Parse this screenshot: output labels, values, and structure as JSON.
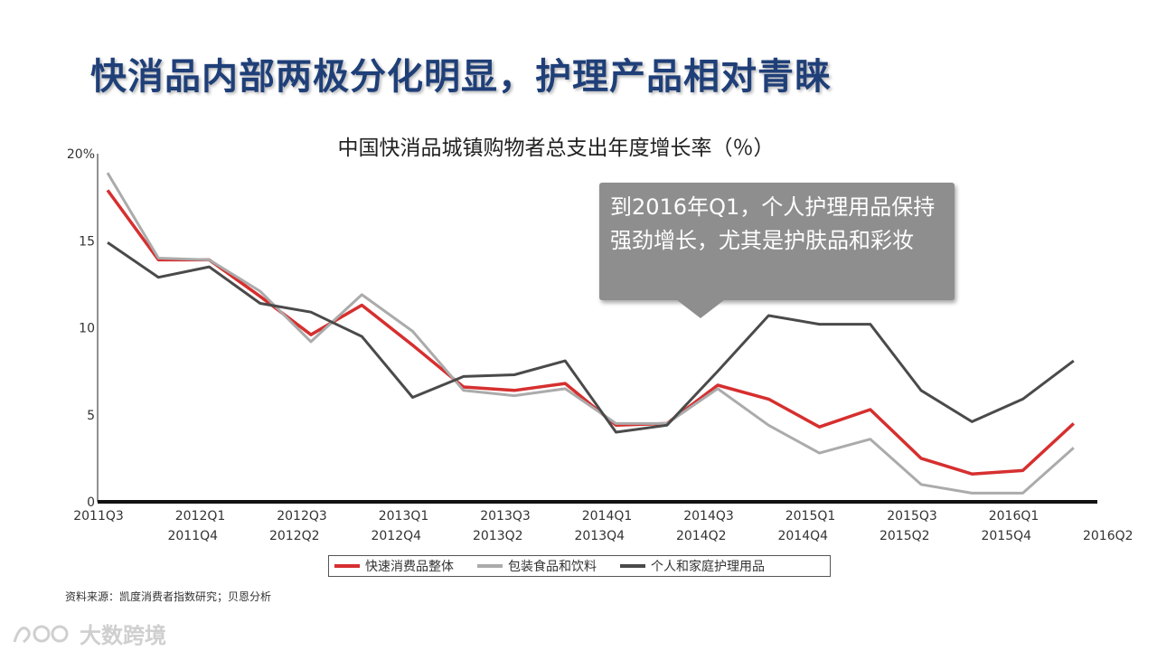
{
  "slide": {
    "title": "快消品内部两极分化明显，护理产品相对青睐",
    "source": "资料来源：凯度消费者指数研究；贝恩分析",
    "watermark": "大数跨境"
  },
  "callout": {
    "text": "到2016年Q1，个人护理用品保持强劲增长，尤其是护肤品和彩妆"
  },
  "chart_data": {
    "type": "line",
    "title": "中国快消品城镇购物者总支出年度增长率（％）",
    "categories": [
      "2011Q3",
      "2011Q4",
      "2012Q1",
      "2012Q2",
      "2012Q3",
      "2012Q4",
      "2013Q1",
      "2013Q2",
      "2013Q3",
      "2013Q4",
      "2014Q1",
      "2014Q2",
      "2014Q3",
      "2014Q4",
      "2015Q1",
      "2015Q2",
      "2015Q3",
      "2015Q4",
      "2016Q1",
      "2016Q2"
    ],
    "ytick_labels": [
      "0",
      "5",
      "10",
      "15",
      "20%"
    ],
    "yticks": [
      0,
      5,
      10,
      15,
      20
    ],
    "ylim": [
      0,
      20
    ],
    "grid": false,
    "legend_position": "bottom",
    "series": [
      {
        "name": "快速消费品整体",
        "color": "#d62f2f",
        "values": [
          17.9,
          13.9,
          13.9,
          11.8,
          9.6,
          11.3,
          9.0,
          6.6,
          6.4,
          6.8,
          4.4,
          4.5,
          6.7,
          5.9,
          4.3,
          5.3,
          2.5,
          1.6,
          1.8,
          4.5
        ]
      },
      {
        "name": "包装食品和饮料",
        "color": "#ababab",
        "values": [
          18.9,
          14.0,
          13.9,
          12.1,
          9.2,
          11.9,
          9.8,
          6.4,
          6.1,
          6.5,
          4.5,
          4.5,
          6.5,
          4.4,
          2.8,
          3.6,
          1.0,
          0.5,
          0.5,
          3.1
        ]
      },
      {
        "name": "个人和家庭护理用品",
        "color": "#4a4a4a",
        "values": [
          14.9,
          12.9,
          13.5,
          11.4,
          10.9,
          9.5,
          6.0,
          7.2,
          7.3,
          8.1,
          4.0,
          4.4,
          7.5,
          10.7,
          10.2,
          10.2,
          6.4,
          4.6,
          5.9,
          8.1
        ]
      }
    ]
  }
}
